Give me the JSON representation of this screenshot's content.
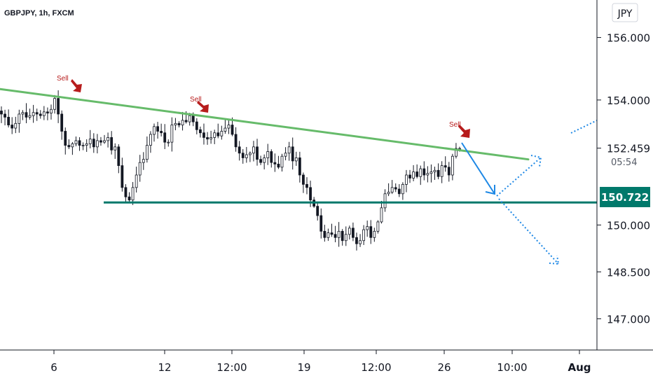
{
  "header": {
    "symbol": "GBPJPY, 1h, FXCM"
  },
  "price_axis": {
    "currency_button": "JPY",
    "ticks": [
      "156.000",
      "154.000",
      "152.459",
      "150.000",
      "148.500",
      "147.000"
    ],
    "current_price": "150.722",
    "countdown": "05:54"
  },
  "time_axis": {
    "labels": [
      "6",
      "12",
      "12:00",
      "19",
      "12:00",
      "26",
      "10:00",
      "Aug"
    ]
  },
  "annotations": {
    "sell_labels": [
      "Sell",
      "Sell",
      "Sell"
    ]
  },
  "colors": {
    "resistance": "#66bb6a",
    "support": "#00796b",
    "forecast": "#1e88e5",
    "sell_arrow": "#b71c1c",
    "candles": "#131722",
    "price_badge": "#00796b"
  },
  "chart_data": {
    "type": "line",
    "title": "GBPJPY, 1h, FXCM",
    "ylim": [
      146.0,
      157.2
    ],
    "y_ticks": [
      156.0,
      154.0,
      152.459,
      150.0,
      148.5,
      147.0
    ],
    "x_tick_labels": [
      "6",
      "12",
      "12:00",
      "19",
      "12:00",
      "26",
      "10:00",
      "Aug"
    ],
    "series": [
      {
        "values": [
          153.55,
          153.45,
          153.2,
          153.1,
          153.25,
          153.55,
          153.6,
          153.45,
          153.5,
          153.6,
          153.55,
          153.5,
          153.62,
          153.58,
          153.7,
          154.05,
          153.55,
          153.0,
          152.55,
          152.5,
          152.6,
          152.7,
          152.55,
          152.55,
          152.6,
          152.75,
          152.5,
          152.7,
          152.65,
          152.7,
          152.8,
          152.4,
          152.5,
          151.9,
          151.2,
          150.9,
          150.8,
          151.2,
          151.6,
          152.0,
          152.1,
          152.55,
          152.9,
          153.15,
          153.0,
          152.95,
          152.65,
          152.65,
          153.2,
          153.25,
          153.2,
          153.35,
          153.3,
          153.5,
          153.3,
          153.05,
          152.95,
          152.8,
          152.75,
          152.8,
          152.95,
          152.85,
          153.0,
          153.1,
          153.2,
          152.9,
          152.5,
          152.3,
          152.15,
          152.25,
          152.3,
          152.5,
          152.1,
          152.0,
          152.15,
          152.35,
          152.0,
          151.95,
          151.85,
          152.2,
          152.3,
          152.5,
          152.05,
          152.15,
          151.6,
          151.3,
          151.2,
          150.8,
          150.6,
          150.3,
          149.8,
          149.6,
          149.75,
          149.7,
          149.6,
          149.8,
          149.5,
          149.7,
          149.9,
          149.6,
          149.4,
          149.5,
          149.85,
          149.95,
          149.6,
          149.8,
          150.1,
          150.55,
          151.0,
          151.05,
          151.2,
          151.15,
          151.0,
          151.3,
          151.6,
          151.5,
          151.7,
          151.55,
          151.8,
          151.6,
          151.65,
          151.7,
          151.75,
          151.55,
          151.9,
          151.85,
          151.6,
          152.2,
          152.45,
          152.45
        ]
      }
    ],
    "resistance_line": {
      "from": 154.35,
      "to": 152.1
    },
    "support_level": 150.722,
    "current_price": 150.722
  }
}
